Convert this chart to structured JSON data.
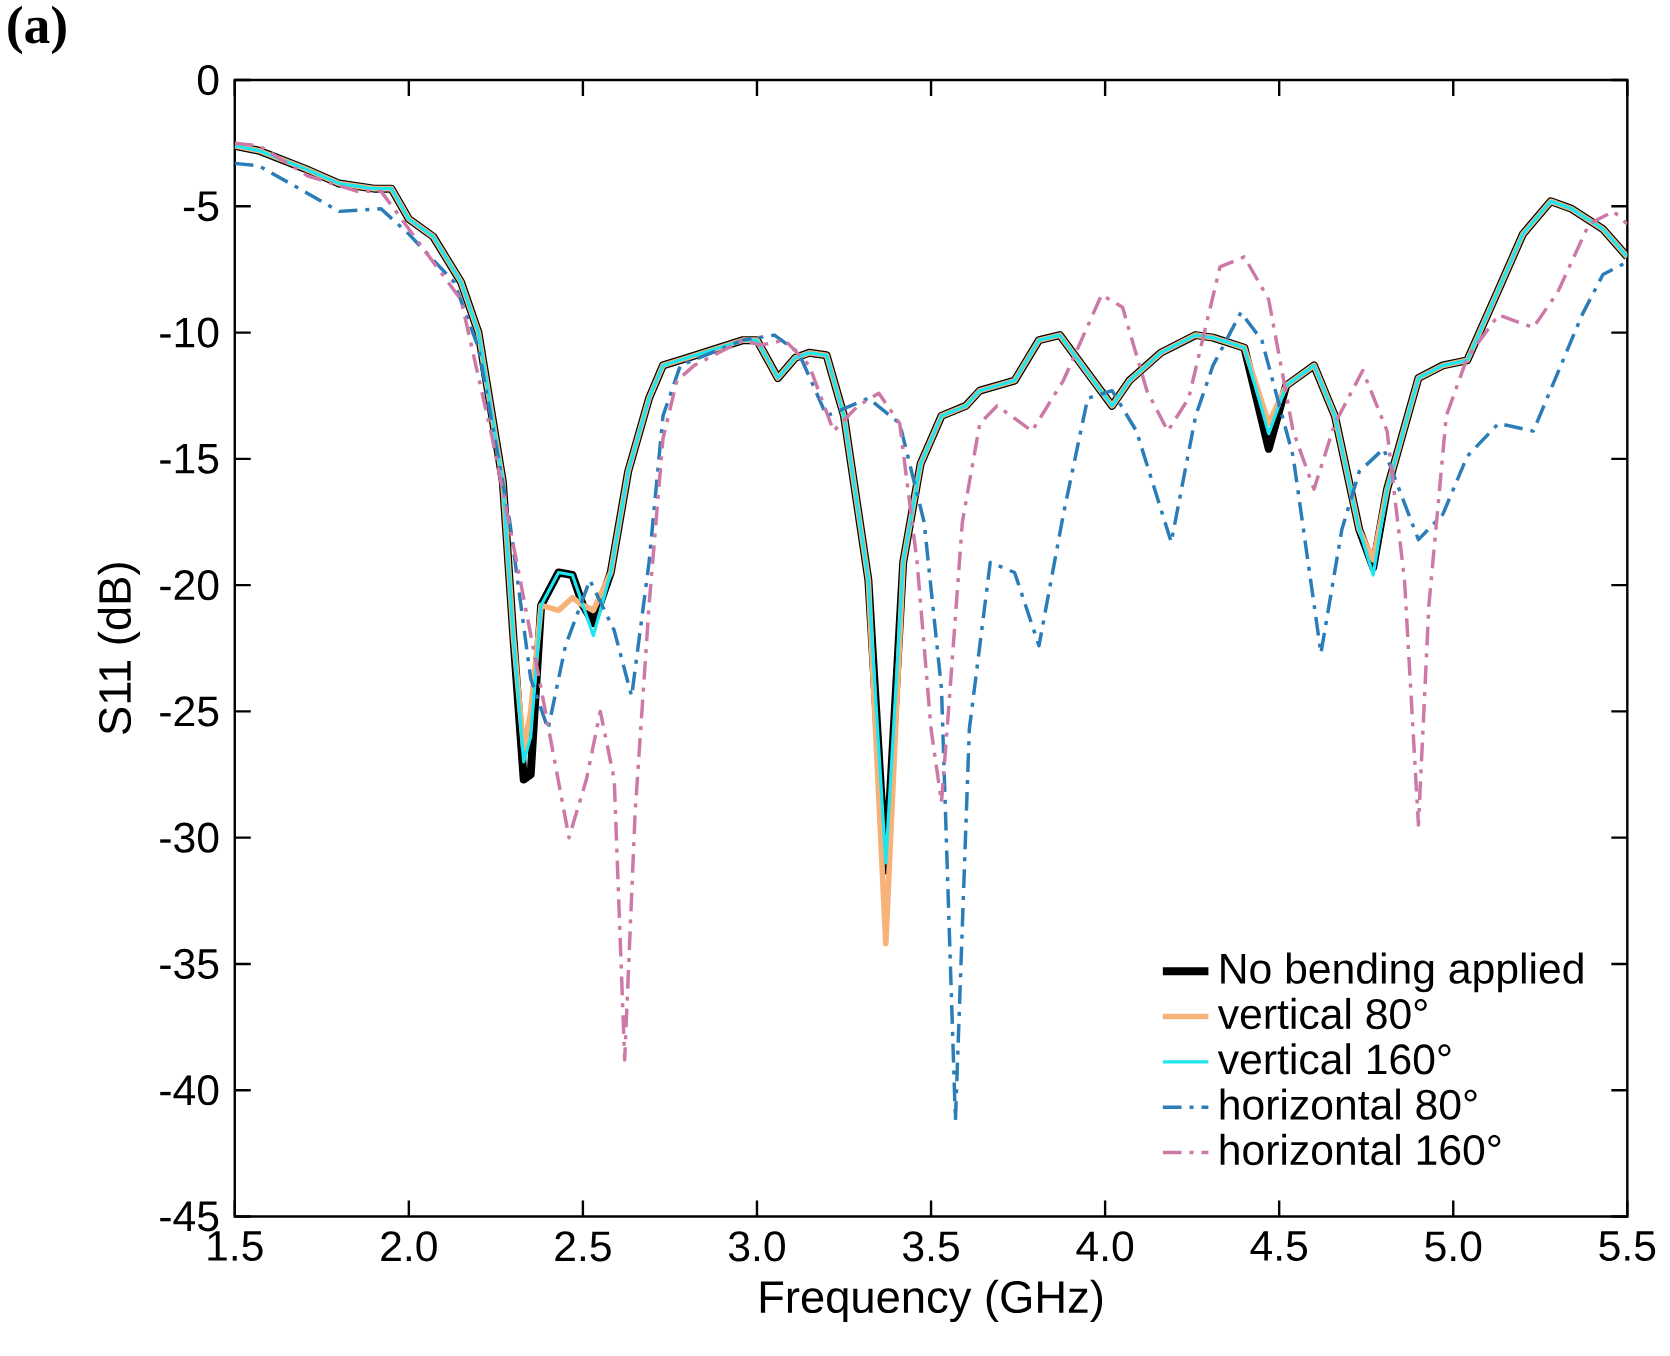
{
  "chart_data": {
    "type": "line",
    "xlabel": "Frequency (GHz)",
    "ylabel": "S11 (dB)",
    "annotations": [
      "(a)"
    ],
    "xlim": [
      1.5,
      5.5
    ],
    "ylim": [
      -45,
      0
    ],
    "xticks": [
      {
        "value": 1.5,
        "label": "1.5"
      },
      {
        "value": 2.0,
        "label": "2.0"
      },
      {
        "value": 2.5,
        "label": "2.5"
      },
      {
        "value": 3.0,
        "label": "3.0"
      },
      {
        "value": 3.5,
        "label": "3.5"
      },
      {
        "value": 4.0,
        "label": "4.0"
      },
      {
        "value": 4.5,
        "label": "4.5"
      },
      {
        "value": 5.0,
        "label": "5.0"
      },
      {
        "value": 5.5,
        "label": "5.5"
      }
    ],
    "yticks": [
      0,
      -5,
      -10,
      -15,
      -20,
      -25,
      -30,
      -35,
      -40,
      -45
    ],
    "legend": "bottom right",
    "marker": "none",
    "grid": false,
    "series": [
      {
        "name": "No bending applied",
        "color": "#000000",
        "line_style": "solid",
        "x": [
          1.5,
          1.57,
          1.7,
          1.8,
          1.9,
          1.95,
          2.0,
          2.07,
          2.15,
          2.2,
          2.27,
          2.3,
          2.33,
          2.35,
          2.38,
          2.43,
          2.47,
          2.5,
          2.53,
          2.58,
          2.63,
          2.69,
          2.73,
          2.8,
          2.96,
          3.0,
          3.06,
          3.11,
          3.15,
          3.2,
          3.25,
          3.32,
          3.37,
          3.42,
          3.47,
          3.53,
          3.6,
          3.64,
          3.74,
          3.81,
          3.87,
          3.95,
          4.02,
          4.07,
          4.16,
          4.26,
          4.31,
          4.4,
          4.47,
          4.52,
          4.6,
          4.66,
          4.73,
          4.77,
          4.81,
          4.9,
          4.97,
          5.04,
          5.13,
          5.2,
          5.28,
          5.34,
          5.43,
          5.5
        ],
        "values": [
          -2.6,
          -2.8,
          -3.5,
          -4.1,
          -4.3,
          -4.3,
          -5.5,
          -6.2,
          -8.0,
          -10.0,
          -15.9,
          -22,
          -27.7,
          -27.5,
          -20.8,
          -19.5,
          -19.6,
          -20.8,
          -21.5,
          -19.5,
          -15.5,
          -12.6,
          -11.3,
          -11.0,
          -10.3,
          -10.3,
          -11.8,
          -11.0,
          -10.8,
          -10.9,
          -13.3,
          -19.8,
          -31.3,
          -19.1,
          -15.2,
          -13.3,
          -12.9,
          -12.3,
          -11.9,
          -10.3,
          -10.1,
          -11.6,
          -12.9,
          -11.9,
          -10.8,
          -10.1,
          -10.2,
          -10.6,
          -14.6,
          -12.1,
          -11.3,
          -13.3,
          -17.8,
          -19.3,
          -16.2,
          -11.8,
          -11.3,
          -11.1,
          -8.3,
          -6.1,
          -4.8,
          -5.1,
          -5.9,
          -7.0
        ]
      },
      {
        "name": "vertical 80°",
        "color": "#f7b27a",
        "line_style": "solid",
        "x": [
          1.5,
          1.57,
          1.7,
          1.8,
          1.9,
          1.95,
          2.0,
          2.07,
          2.15,
          2.2,
          2.27,
          2.3,
          2.33,
          2.35,
          2.38,
          2.43,
          2.47,
          2.5,
          2.53,
          2.58,
          2.63,
          2.69,
          2.73,
          2.8,
          2.96,
          3.0,
          3.06,
          3.11,
          3.15,
          3.2,
          3.25,
          3.32,
          3.37,
          3.42,
          3.47,
          3.53,
          3.6,
          3.64,
          3.74,
          3.81,
          3.87,
          3.95,
          4.02,
          4.07,
          4.16,
          4.26,
          4.31,
          4.4,
          4.47,
          4.52,
          4.6,
          4.66,
          4.73,
          4.77,
          4.81,
          4.9,
          4.97,
          5.04,
          5.13,
          5.2,
          5.28,
          5.34,
          5.43,
          5.5
        ],
        "values": [
          -2.6,
          -2.8,
          -3.5,
          -4.1,
          -4.3,
          -4.3,
          -5.5,
          -6.2,
          -8.0,
          -10.0,
          -15.9,
          -22,
          -26.5,
          -25,
          -20.8,
          -21,
          -20.5,
          -20.8,
          -21,
          -19.5,
          -15.5,
          -12.6,
          -11.3,
          -11.0,
          -10.3,
          -10.3,
          -11.8,
          -11.0,
          -10.8,
          -10.9,
          -13.3,
          -19.8,
          -34.2,
          -19.1,
          -15.2,
          -13.3,
          -12.9,
          -12.3,
          -11.9,
          -10.3,
          -10.1,
          -11.6,
          -12.9,
          -11.9,
          -10.8,
          -10.1,
          -10.2,
          -10.6,
          -13.6,
          -12.1,
          -11.3,
          -13.3,
          -17.8,
          -19.0,
          -16.2,
          -11.8,
          -11.3,
          -11.1,
          -8.3,
          -6.1,
          -4.8,
          -5.1,
          -5.9,
          -7.0
        ]
      },
      {
        "name": "vertical 160°",
        "color": "#1ee6f0",
        "line_style": "solid",
        "x": [
          1.5,
          1.57,
          1.7,
          1.8,
          1.9,
          1.95,
          2.0,
          2.07,
          2.15,
          2.2,
          2.27,
          2.3,
          2.33,
          2.35,
          2.38,
          2.43,
          2.47,
          2.5,
          2.53,
          2.58,
          2.63,
          2.69,
          2.73,
          2.8,
          2.96,
          3.0,
          3.06,
          3.11,
          3.15,
          3.2,
          3.25,
          3.32,
          3.37,
          3.42,
          3.47,
          3.53,
          3.6,
          3.64,
          3.74,
          3.81,
          3.87,
          3.95,
          4.02,
          4.07,
          4.16,
          4.26,
          4.31,
          4.4,
          4.47,
          4.52,
          4.6,
          4.66,
          4.73,
          4.77,
          4.81,
          4.9,
          4.97,
          5.04,
          5.13,
          5.2,
          5.28,
          5.34,
          5.43,
          5.5
        ],
        "values": [
          -2.6,
          -2.8,
          -3.5,
          -4.1,
          -4.3,
          -4.3,
          -5.5,
          -6.2,
          -8.0,
          -10.0,
          -15.9,
          -22,
          -27,
          -26,
          -20.8,
          -19.5,
          -19.6,
          -20.8,
          -22,
          -19.5,
          -15.5,
          -12.6,
          -11.3,
          -11.0,
          -10.3,
          -10.3,
          -11.8,
          -11.0,
          -10.8,
          -10.9,
          -13.3,
          -19.8,
          -31,
          -19.1,
          -15.2,
          -13.3,
          -12.9,
          -12.3,
          -11.9,
          -10.3,
          -10.1,
          -11.6,
          -12.9,
          -11.9,
          -10.8,
          -10.1,
          -10.2,
          -10.6,
          -14.0,
          -12.1,
          -11.3,
          -13.3,
          -17.8,
          -19.6,
          -16.2,
          -11.8,
          -11.3,
          -11.1,
          -8.3,
          -6.1,
          -4.8,
          -5.1,
          -5.9,
          -7.0
        ]
      },
      {
        "name": "horizontal 80°",
        "color": "#2a7db8",
        "line_style": "dashdot",
        "x": [
          1.5,
          1.57,
          1.8,
          1.92,
          2.0,
          2.13,
          2.2,
          2.29,
          2.35,
          2.4,
          2.45,
          2.52,
          2.59,
          2.64,
          2.69,
          2.73,
          2.78,
          2.96,
          3.05,
          3.12,
          3.2,
          3.32,
          3.41,
          3.48,
          3.53,
          3.57,
          3.61,
          3.67,
          3.74,
          3.81,
          3.88,
          3.95,
          4.02,
          4.09,
          4.19,
          4.26,
          4.31,
          4.39,
          4.45,
          4.54,
          4.62,
          4.68,
          4.73,
          4.8,
          4.9,
          4.97,
          5.04,
          5.13,
          5.23,
          5.3,
          5.37,
          5.43,
          5.5
        ],
        "values": [
          -3.3,
          -3.4,
          -5.2,
          -5.1,
          -6.1,
          -8.0,
          -10.6,
          -17.5,
          -23.7,
          -25.7,
          -22.4,
          -19.8,
          -21.8,
          -24.4,
          -19.1,
          -13.3,
          -11.3,
          -10.3,
          -10.1,
          -10.8,
          -13.3,
          -12.6,
          -13.6,
          -17.5,
          -24.1,
          -41.2,
          -25.7,
          -19.1,
          -19.5,
          -22.4,
          -17.2,
          -12.6,
          -12.3,
          -13.9,
          -18.3,
          -13.3,
          -11.3,
          -9.2,
          -10.3,
          -14.9,
          -22.7,
          -17.8,
          -15.5,
          -14.6,
          -18.2,
          -17.2,
          -14.9,
          -13.6,
          -13.9,
          -11.6,
          -9.3,
          -7.7,
          -7.2
        ]
      },
      {
        "name": "horizontal 160°",
        "color": "#cc79a7",
        "line_style": "dashdot",
        "x": [
          1.5,
          1.57,
          1.71,
          1.85,
          1.92,
          2.0,
          2.15,
          2.24,
          2.31,
          2.38,
          2.46,
          2.51,
          2.55,
          2.59,
          2.62,
          2.65,
          2.69,
          2.73,
          2.77,
          2.82,
          2.96,
          3.01,
          3.08,
          3.15,
          3.22,
          3.29,
          3.35,
          3.41,
          3.46,
          3.5,
          3.53,
          3.55,
          3.59,
          3.64,
          3.69,
          3.79,
          3.88,
          3.99,
          4.05,
          4.12,
          4.18,
          4.24,
          4.33,
          4.4,
          4.47,
          4.54,
          4.6,
          4.66,
          4.74,
          4.81,
          4.86,
          4.9,
          4.93,
          4.98,
          5.04,
          5.13,
          5.23,
          5.3,
          5.39,
          5.46,
          5.5
        ],
        "values": [
          -2.5,
          -2.6,
          -3.8,
          -4.4,
          -4.4,
          -5.9,
          -8.7,
          -14.2,
          -19.1,
          -24.1,
          -30.0,
          -27.7,
          -25.0,
          -27.7,
          -38.8,
          -29.0,
          -20.8,
          -14.2,
          -11.9,
          -11.3,
          -10.3,
          -10.5,
          -10.3,
          -11.3,
          -13.9,
          -12.9,
          -12.4,
          -13.6,
          -19.1,
          -25.7,
          -28.6,
          -25.0,
          -17.5,
          -13.6,
          -12.9,
          -13.9,
          -11.9,
          -8.5,
          -9.0,
          -12.3,
          -13.9,
          -12.6,
          -7.4,
          -7.0,
          -8.7,
          -13.9,
          -16.2,
          -13.6,
          -11.5,
          -13.9,
          -19.8,
          -29.5,
          -20.8,
          -13.3,
          -11.0,
          -9.3,
          -9.8,
          -8.4,
          -5.7,
          -5.2,
          -5.7
        ]
      }
    ]
  }
}
